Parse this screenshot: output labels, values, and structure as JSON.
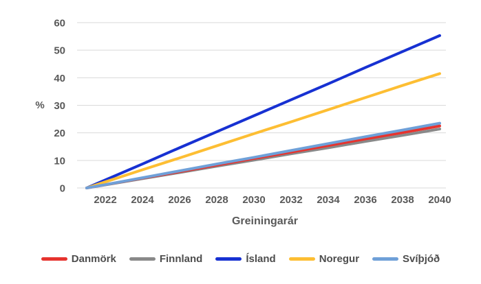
{
  "figure": {
    "background": "#FFFFFF",
    "tick_text_color": "#595959",
    "legend_text_color": "#4D4D4D",
    "grid_color": "#D9D9D9"
  },
  "chart_data": {
    "type": "line",
    "x": [
      2021,
      2022,
      2024,
      2026,
      2028,
      2030,
      2032,
      2034,
      2036,
      2038,
      2040
    ],
    "xlabel": "Greiningarár",
    "ylabel": "%",
    "xlim": [
      2021,
      2040
    ],
    "ylim": [
      0,
      60
    ],
    "y_ticks": [
      0,
      10,
      20,
      30,
      40,
      50,
      60
    ],
    "x_ticks": [
      2022,
      2024,
      2026,
      2028,
      2030,
      2032,
      2034,
      2036,
      2038,
      2040
    ],
    "grid": "horizontal",
    "legend_position": "bottom",
    "series": [
      {
        "name": "Danmörk",
        "color": "#E6332E",
        "values": [
          0,
          1.2,
          3.6,
          5.9,
          8.3,
          10.7,
          13.0,
          15.4,
          17.8,
          20.1,
          22.5
        ]
      },
      {
        "name": "Finnland",
        "color": "#898989",
        "values": [
          0,
          1.1,
          3.4,
          5.6,
          7.9,
          10.1,
          12.4,
          14.6,
          16.9,
          19.1,
          21.4
        ]
      },
      {
        "name": "Ísland",
        "color": "#1731D2",
        "values": [
          0,
          2.9,
          8.7,
          14.6,
          20.4,
          26.2,
          32.0,
          37.8,
          43.7,
          49.5,
          55.3
        ]
      },
      {
        "name": "Noregur",
        "color": "#FDBE33",
        "values": [
          0,
          2.2,
          6.6,
          10.9,
          15.3,
          19.7,
          24.0,
          28.4,
          32.8,
          37.2,
          41.5
        ]
      },
      {
        "name": "Svíþjóð",
        "color": "#6FA0D8",
        "values": [
          0,
          1.2,
          3.7,
          6.2,
          8.7,
          11.1,
          13.6,
          16.1,
          18.6,
          21.0,
          23.5
        ]
      }
    ]
  }
}
